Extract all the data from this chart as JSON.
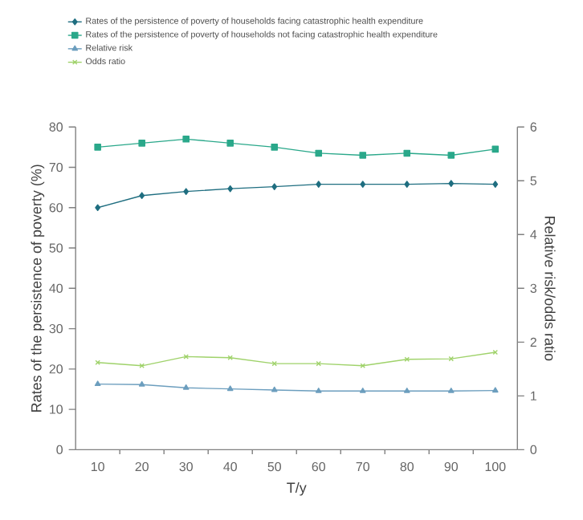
{
  "chart_data": {
    "type": "line",
    "xlabel": "T/y",
    "ylabel": "Rates of the persistence of poverty (%)",
    "y2label": "Relative risk/odds ratio",
    "categories": [
      "10",
      "20",
      "30",
      "40",
      "50",
      "60",
      "70",
      "80",
      "90",
      "100"
    ],
    "series": [
      {
        "name": "Rates of the persistence of poverty of households facing catastrophic health expenditure",
        "color": "#1f6e80",
        "marker": "diamond",
        "values": [
          60,
          63,
          64,
          64.7,
          65.2,
          65.8,
          65.8,
          65.8,
          66,
          65.8
        ]
      },
      {
        "name": "Rates of the persistence of poverty of households not facing catastrophic health expenditure",
        "color": "#2aa88a",
        "marker": "square",
        "values": [
          75,
          76,
          77,
          76,
          75,
          73.5,
          73,
          73.5,
          73,
          74.5
        ]
      },
      {
        "name": "Relative risk",
        "color": "#6c9ebe",
        "marker": "triangle",
        "axis": "y2",
        "values": [
          1.22,
          1.21,
          1.15,
          1.13,
          1.11,
          1.09,
          1.09,
          1.09,
          1.09,
          1.1
        ]
      },
      {
        "name": "Odds ratio",
        "color": "#9fd26a",
        "marker": "cross",
        "axis": "y2",
        "values": [
          1.62,
          1.56,
          1.73,
          1.71,
          1.6,
          1.6,
          1.56,
          1.68,
          1.69,
          1.81
        ]
      }
    ],
    "ylim": [
      0,
      80
    ],
    "yticks": [
      0,
      10,
      20,
      30,
      40,
      50,
      60,
      70,
      80
    ],
    "y2lim": [
      0,
      6
    ],
    "y2ticks": [
      0,
      1,
      2,
      3,
      4,
      5,
      6
    ],
    "legend": "top",
    "grid": false
  }
}
